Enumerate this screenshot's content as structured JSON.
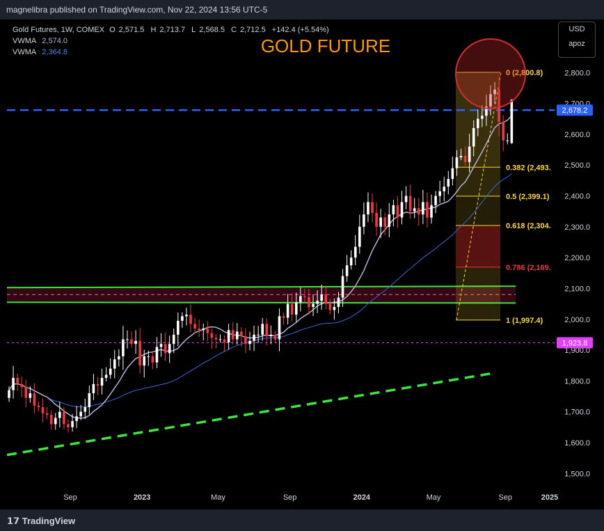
{
  "attribution": "magnelibra published on TradingView.com, Nov 22, 2024 13:56 UTC-5",
  "legend": {
    "title": "Gold Futures, 1W, COMEX",
    "o_label": "O",
    "o": "2,571.5",
    "h_label": "H",
    "h": "2,713.7",
    "l_label": "L",
    "l": "2,568.5",
    "c_label": "C",
    "c": "2,712.5",
    "change": "+142.4 (+5.54%)",
    "vwma1_label": "VWMA",
    "vwma1": "2,574.0",
    "vwma2_label": "VWMA",
    "vwma2": "2,364.8"
  },
  "buttons": {
    "currency": "USD",
    "scale": "apoz"
  },
  "footer": {
    "brand": "TradingView"
  },
  "colors": {
    "bull": "#ffffff",
    "bear": "#f23645",
    "vwma_fast": "#b9b2d6",
    "vwma_slow": "#3a66d6",
    "fib": "#fdd835",
    "fib_786": "#f23645",
    "zone": "#39e83c",
    "title": "#ff9800",
    "dashed_blue": "#2962ff",
    "magenta": "#e040fb",
    "circle": "#d32f2f"
  },
  "chart_data": {
    "type": "candlestick",
    "title": "GOLD FUTURE",
    "ylim": [
      1450,
      2860
    ],
    "y_ticks": [
      "2,800.0",
      "2,700.0",
      "2,600.0",
      "2,500.0",
      "2,400.0",
      "2,300.0",
      "2,200.0",
      "2,100.0",
      "2,000.0",
      "1,900.0",
      "1,800.0",
      "1,700.0",
      "1,600.0",
      "1,500.0"
    ],
    "x_ticks": [
      {
        "label": "Sep",
        "week": 0
      },
      {
        "label": "2023",
        "week": 17
      },
      {
        "label": "May",
        "week": 35
      },
      {
        "label": "Sep",
        "week": 52
      },
      {
        "label": "2024",
        "week": 69
      },
      {
        "label": "May",
        "week": 86
      },
      {
        "label": "Sep",
        "week": 103
      },
      {
        "label": "2025",
        "week": 121
      }
    ],
    "start_date": "2022-07-03",
    "week_count": 120,
    "close": [
      1770,
      1810,
      1790,
      1780,
      1745,
      1760,
      1720,
      1715,
      1695,
      1690,
      1660,
      1680,
      1700,
      1660,
      1650,
      1670,
      1685,
      1700,
      1715,
      1760,
      1790,
      1785,
      1810,
      1820,
      1840,
      1870,
      1880,
      1935,
      1935,
      1920,
      1930,
      1850,
      1880,
      1880,
      1860,
      1910,
      1920,
      1890,
      1920,
      1950,
      1995,
      2010,
      2015,
      1985,
      1970,
      1965,
      1970,
      1955,
      1940,
      1935,
      1935,
      1925,
      1965,
      1935,
      1960,
      1945,
      1920,
      1930,
      1950,
      1950,
      1985,
      1945,
      1950,
      1935,
      2010,
      2005,
      2050,
      2015,
      2055,
      2075,
      2072,
      2040,
      2050,
      2060,
      2080,
      2050,
      2030,
      2040,
      2070,
      2140,
      2175,
      2200,
      2235,
      2300,
      2340,
      2380,
      2345,
      2300,
      2330,
      2300,
      2340,
      2370,
      2330,
      2380,
      2400,
      2350,
      2360,
      2340,
      2380,
      2330,
      2370,
      2400,
      2415,
      2430,
      2455,
      2490,
      2525,
      2530,
      2510,
      2560,
      2620,
      2650,
      2660,
      2690,
      2730,
      2745,
      2640,
      2580,
      2580,
      2710
    ],
    "annotations": [
      "GOLD FUTURE"
    ],
    "fib_levels": [
      {
        "ratio": "0",
        "text": "0 (2,800.8)",
        "value": 2800.8
      },
      {
        "ratio": "0.382",
        "text": "0.382 (2,493.",
        "value": 2493.0
      },
      {
        "ratio": "0.5",
        "text": "0.5 (2,399.1)",
        "value": 2399.1
      },
      {
        "ratio": "0.618",
        "text": "0.618 (2,304.",
        "value": 2304.0
      },
      {
        "ratio": "0.786",
        "text": "0.786 (2,169.",
        "value": 2169.0
      },
      {
        "ratio": "1",
        "text": "1 (1,997.4)",
        "value": 1997.4
      }
    ],
    "price_tags": [
      {
        "text": "2,678.2",
        "value": 2678.2
      },
      {
        "text": "1,923.8",
        "value": 1923.8
      }
    ],
    "support_zone": [
      2055,
      2105
    ]
  }
}
